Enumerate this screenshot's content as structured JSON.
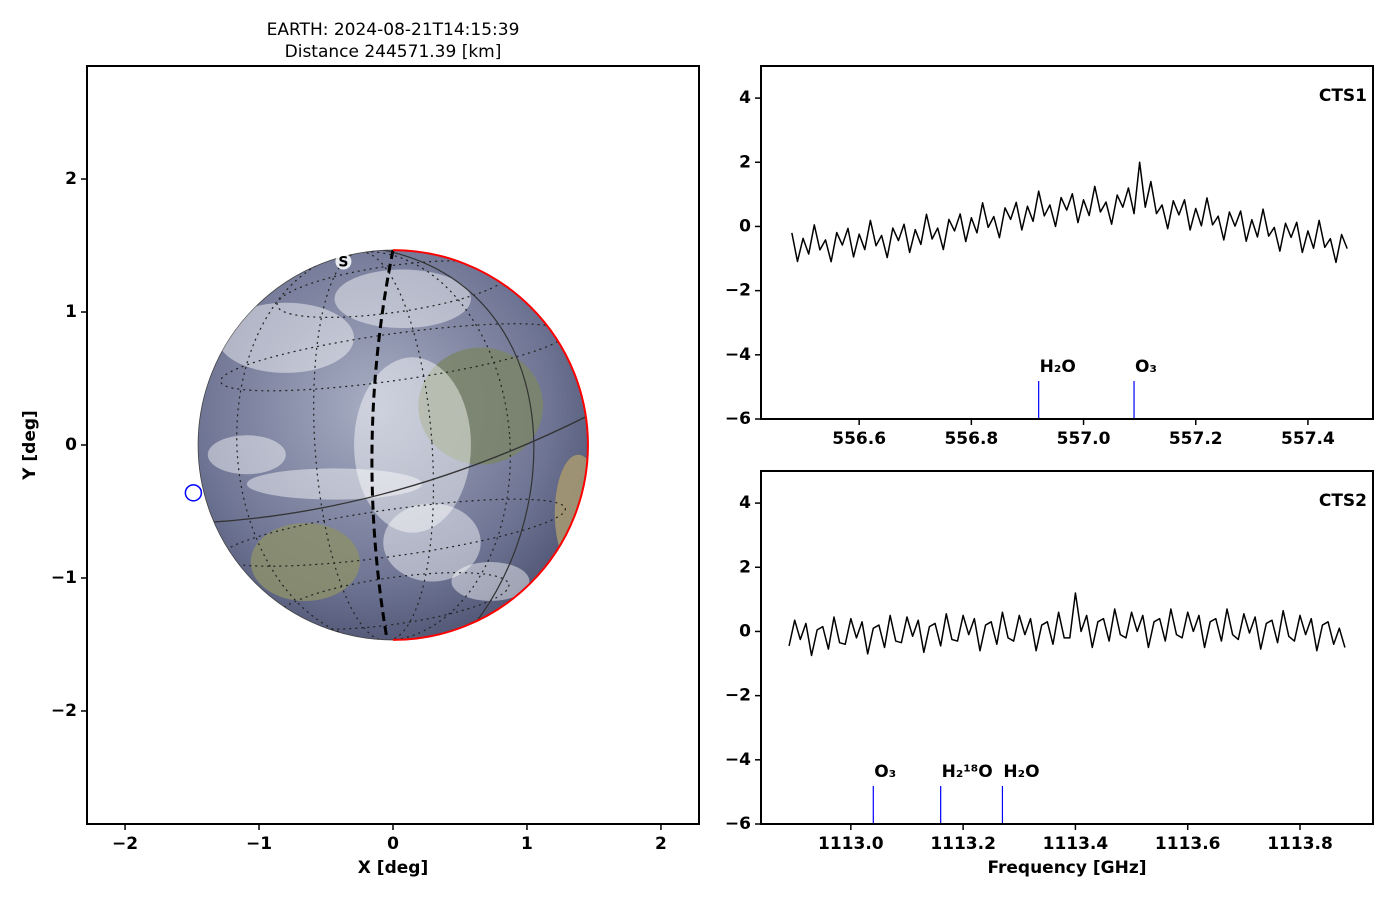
{
  "chart_data": [
    {
      "type": "scatter",
      "title": "EARTH: 2024-08-21T14:15:39",
      "subtitle": "Distance 244571.39 [km]",
      "xlabel": "X [deg]",
      "ylabel": "Y [deg]",
      "xlim": [
        -2.284,
        2.284
      ],
      "ylim": [
        -2.85,
        2.85
      ],
      "xticks": [
        {
          "value": -2,
          "label": "−2"
        },
        {
          "value": -1,
          "label": "−1"
        },
        0,
        1,
        2
      ],
      "yticks": [
        {
          "value": -2,
          "label": "−2"
        },
        {
          "value": -1,
          "label": "−1"
        },
        0,
        1,
        2
      ],
      "x": [
        -1.49
      ],
      "y": [
        -0.36
      ],
      "color": "#0000ff",
      "disk": {
        "x": 0,
        "y": 0,
        "radius": 1.455
      },
      "annotations": [
        {
          "text": "S",
          "x": -0.37,
          "y": 1.38
        }
      ]
    },
    {
      "type": "line",
      "label": "CTS1",
      "label_color": "#0000ff",
      "xlim": [
        556.425,
        557.516
      ],
      "ylim": [
        -6,
        5
      ],
      "xticks": [
        556.6,
        556.8,
        {
          "value": 557,
          "label": "557.0"
        },
        557.2,
        557.4
      ],
      "yticks": [
        {
          "value": -6,
          "label": "−6"
        },
        {
          "value": -4,
          "label": "−4"
        },
        {
          "value": -2,
          "label": "−2"
        },
        0,
        2,
        4
      ],
      "x": [
        556.48,
        556.49,
        556.5,
        556.51,
        556.52,
        556.53,
        556.54,
        556.55,
        556.56,
        556.57,
        556.58,
        556.59,
        556.6,
        556.61,
        556.62,
        556.63,
        556.64,
        556.65,
        556.66,
        556.67,
        556.68,
        556.69,
        556.7,
        556.71,
        556.72,
        556.73,
        556.74,
        556.75,
        556.76,
        556.77,
        556.78,
        556.79,
        556.8,
        556.81,
        556.82,
        556.83,
        556.84,
        556.85,
        556.86,
        556.87,
        556.88,
        556.89,
        556.9,
        556.91,
        556.92,
        556.93,
        556.94,
        556.95,
        556.96,
        556.97,
        556.98,
        556.99,
        557,
        557.01,
        557.02,
        557.03,
        557.04,
        557.05,
        557.06,
        557.07,
        557.08,
        557.09,
        557.1,
        557.11,
        557.12,
        557.13,
        557.14,
        557.15,
        557.16,
        557.17,
        557.18,
        557.19,
        557.2,
        557.21,
        557.22,
        557.23,
        557.24,
        557.25,
        557.26,
        557.27,
        557.28,
        557.29,
        557.3,
        557.31,
        557.32,
        557.33,
        557.34,
        557.35,
        557.36,
        557.37,
        557.38,
        557.39,
        557.4,
        557.41,
        557.42,
        557.43,
        557.44,
        557.45,
        557.46,
        557.47
      ],
      "series": [
        {
          "color": "#000000",
          "values": [
            -0.2,
            -1.09,
            -0.37,
            -0.86,
            0.05,
            -0.73,
            -0.42,
            -1.1,
            -0.19,
            -0.58,
            -0.06,
            -0.95,
            -0.24,
            -0.72,
            0.19,
            -0.6,
            -0.28,
            -0.97,
            -0.05,
            -0.44,
            0.07,
            -0.81,
            -0.1,
            -0.56,
            0.38,
            -0.39,
            -0.05,
            -0.72,
            0.22,
            -0.14,
            0.39,
            -0.47,
            0.27,
            -0.2,
            0.74,
            -0.03,
            0.31,
            -0.35,
            0.58,
            0.22,
            0.75,
            -0.11,
            0.63,
            0.16,
            1.1,
            0.33,
            0.67,
            0,
            0.9,
            0.51,
            1.02,
            0.12,
            0.83,
            0.34,
            1.25,
            0.45,
            0.76,
            0.07,
            0.98,
            0.6,
            1.2,
            0.4,
            2,
            0.6,
            1.4,
            0.4,
            0.67,
            -0.07,
            0.8,
            0.36,
            0.83,
            -0.11,
            0.56,
            0.02,
            0.89,
            0.05,
            0.32,
            -0.42,
            0.45,
            0.01,
            0.48,
            -0.46,
            0.21,
            -0.33,
            0.54,
            -0.3,
            -0.03,
            -0.77,
            0.1,
            -0.34,
            0.13,
            -0.81,
            -0.14,
            -0.68,
            0.19,
            -0.65,
            -0.38,
            -1.12,
            -0.25,
            -0.69
          ]
        }
      ],
      "markers": [
        {
          "label": "H₂O",
          "x": 556.92
        },
        {
          "label": "O₃",
          "x": 557.09
        }
      ],
      "marker_color": "#0000ff"
    },
    {
      "type": "line",
      "label": "CTS2",
      "label_color": "#0000ff",
      "xlabel": "Frequency [GHz]",
      "xlim": [
        1112.84,
        1113.93
      ],
      "ylim": [
        -6,
        5
      ],
      "xticks": [
        {
          "value": 1113,
          "label": "1113.0"
        },
        1113.2,
        1113.4,
        1113.6,
        1113.8
      ],
      "yticks": [
        {
          "value": -6,
          "label": "−6"
        },
        {
          "value": -4,
          "label": "−4"
        },
        {
          "value": -2,
          "label": "−2"
        },
        0,
        2,
        4
      ],
      "x": [
        1112.89,
        1112.9,
        1112.91,
        1112.92,
        1112.93,
        1112.94,
        1112.95,
        1112.96,
        1112.97,
        1112.98,
        1112.99,
        1113,
        1113.01,
        1113.02,
        1113.03,
        1113.04,
        1113.05,
        1113.06,
        1113.07,
        1113.08,
        1113.09,
        1113.1,
        1113.11,
        1113.12,
        1113.13,
        1113.14,
        1113.15,
        1113.16,
        1113.17,
        1113.18,
        1113.19,
        1113.2,
        1113.21,
        1113.22,
        1113.23,
        1113.24,
        1113.25,
        1113.26,
        1113.27,
        1113.28,
        1113.29,
        1113.3,
        1113.31,
        1113.32,
        1113.33,
        1113.34,
        1113.35,
        1113.36,
        1113.37,
        1113.38,
        1113.39,
        1113.4,
        1113.41,
        1113.42,
        1113.43,
        1113.44,
        1113.45,
        1113.46,
        1113.47,
        1113.48,
        1113.49,
        1113.5,
        1113.51,
        1113.52,
        1113.53,
        1113.54,
        1113.55,
        1113.56,
        1113.57,
        1113.58,
        1113.59,
        1113.6,
        1113.61,
        1113.62,
        1113.63,
        1113.64,
        1113.65,
        1113.66,
        1113.67,
        1113.68,
        1113.69,
        1113.7,
        1113.71,
        1113.72,
        1113.73,
        1113.74,
        1113.75,
        1113.76,
        1113.77,
        1113.78,
        1113.79,
        1113.8,
        1113.81,
        1113.82,
        1113.83,
        1113.84,
        1113.85,
        1113.86,
        1113.87,
        1113.88
      ],
      "series": [
        {
          "color": "#000000",
          "values": [
            -0.45,
            0.35,
            -0.25,
            0.25,
            -0.75,
            0.05,
            0.15,
            -0.55,
            0.45,
            -0.35,
            -0.4,
            0.4,
            -0.2,
            0.3,
            -0.7,
            0.1,
            0.2,
            -0.5,
            0.5,
            -0.3,
            -0.35,
            0.45,
            -0.15,
            0.35,
            -0.65,
            0.15,
            0.25,
            -0.45,
            0.55,
            -0.25,
            -0.3,
            0.5,
            -0.1,
            0.4,
            -0.6,
            0.2,
            0.3,
            -0.4,
            0.6,
            -0.2,
            -0.3,
            0.5,
            -0.1,
            0.4,
            -0.6,
            0.2,
            0.3,
            -0.4,
            0.6,
            -0.2,
            -0.2,
            1.2,
            0,
            0.5,
            -0.5,
            0.3,
            0.4,
            -0.3,
            0.7,
            -0.1,
            -0.2,
            0.6,
            0,
            0.5,
            -0.5,
            0.3,
            0.4,
            -0.3,
            0.7,
            -0.1,
            -0.2,
            0.6,
            0,
            0.5,
            -0.5,
            0.3,
            0.4,
            -0.3,
            0.7,
            -0.1,
            -0.25,
            0.55,
            -0.05,
            0.45,
            -0.55,
            0.25,
            0.35,
            -0.35,
            0.65,
            -0.15,
            -0.3,
            0.5,
            -0.1,
            0.4,
            -0.6,
            0.2,
            0.3,
            -0.4,
            0.1,
            -0.5
          ]
        }
      ],
      "markers": [
        {
          "label": "O₃",
          "x": 1113.04
        },
        {
          "label": "H₂¹⁸O",
          "x": 1113.16
        },
        {
          "label": "H₂O",
          "x": 1113.27
        }
      ],
      "marker_color": "#0000ff"
    }
  ]
}
